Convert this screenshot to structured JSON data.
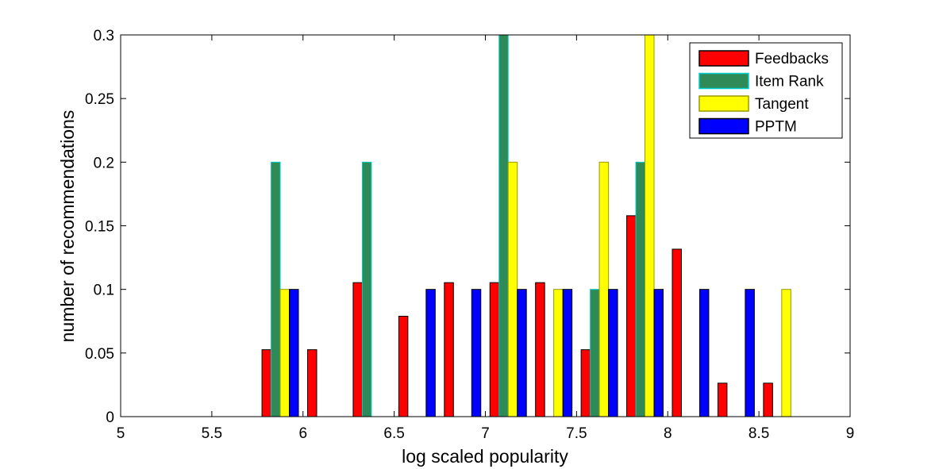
{
  "chart_data": {
    "type": "bar",
    "title": "",
    "xlabel": "log scaled popularity",
    "ylabel": "number of recommendations",
    "xlim": [
      5,
      9
    ],
    "ylim": [
      0,
      0.3
    ],
    "xticks": [
      "5",
      "5.5",
      "6",
      "6.5",
      "7",
      "7.5",
      "8",
      "8.5",
      "9"
    ],
    "yticks": [
      "0",
      "0.05",
      "0.1",
      "0.15",
      "0.2",
      "0.25",
      "0.3"
    ],
    "grid": false,
    "legend_position": "top-right",
    "bin_centers": [
      5.125,
      5.375,
      5.625,
      5.875,
      6.125,
      6.375,
      6.625,
      6.875,
      7.125,
      7.375,
      7.625,
      7.875,
      8.125,
      8.375,
      8.625,
      8.875
    ],
    "series": [
      {
        "name": "Feedbacks",
        "color": "#ff0000",
        "edge": "#000000",
        "values": [
          0,
          0,
          0,
          0.0526,
          0.0526,
          0.1053,
          0.0789,
          0.1053,
          0.1053,
          0.1053,
          0.0526,
          0.1579,
          0.1316,
          0.0263,
          0.0263,
          0
        ]
      },
      {
        "name": "Item Rank",
        "color": "#2e8b57",
        "edge": "#00cccc",
        "values": [
          0,
          0,
          0,
          0.2,
          0,
          0.2,
          0,
          0,
          0.3,
          0,
          0.1,
          0.2,
          0,
          0,
          0,
          0
        ]
      },
      {
        "name": "Tangent",
        "color": "#ffff00",
        "edge": "#999900",
        "values": [
          0,
          0,
          0,
          0.1,
          0,
          0,
          0,
          0,
          0.2,
          0.1,
          0.2,
          0.3,
          0,
          0,
          0.1,
          0
        ]
      },
      {
        "name": "PPTM",
        "color": "#0000ff",
        "edge": "#000000",
        "values": [
          0,
          0,
          0,
          0.1,
          0,
          0,
          0.1,
          0.1,
          0.1,
          0.1,
          0.1,
          0.1,
          0.1,
          0.1,
          0,
          0
        ]
      }
    ]
  }
}
